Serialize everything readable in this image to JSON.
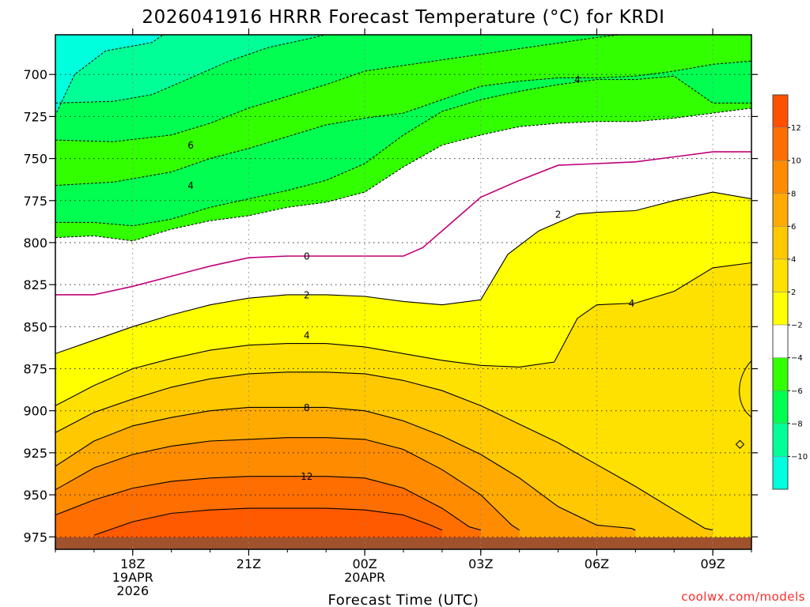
{
  "chart_data": {
    "type": "heatmap",
    "title": "2026041916 HRRR Forecast Temperature (°C) for KRDI",
    "xlabel": "Forecast Time (UTC)",
    "ylabel": "",
    "credit": "coolwx.com/models",
    "x_ticks": [
      {
        "hour": 2,
        "lines": [
          "18Z",
          "19APR",
          "2026"
        ]
      },
      {
        "hour": 5,
        "lines": [
          "21Z"
        ]
      },
      {
        "hour": 8,
        "lines": [
          "00Z",
          "20APR"
        ]
      },
      {
        "hour": 11,
        "lines": [
          "03Z"
        ]
      },
      {
        "hour": 14,
        "lines": [
          "06Z"
        ]
      },
      {
        "hour": 17,
        "lines": [
          "09Z"
        ]
      }
    ],
    "xlim_hours": [
      0,
      18
    ],
    "y_ticks": [
      700,
      725,
      750,
      775,
      800,
      825,
      850,
      875,
      900,
      925,
      950,
      975
    ],
    "ylim": [
      676,
      982
    ],
    "colorbar": {
      "levels": [
        -10,
        -8,
        -6,
        -4,
        -2,
        2,
        4,
        6,
        8,
        10,
        12,
        14
      ],
      "colors": [
        "#00ffdc",
        "#00ff96",
        "#00ff50",
        "#32ff00",
        "#ffffff",
        "#ffff00",
        "#ffe100",
        "#ffc800",
        "#ffaa00",
        "#ff8c00",
        "#ff6e00",
        "#ff5000"
      ]
    },
    "fill_colors": {
      "cold_6": "#00ff96",
      "cold_4": "#00ff50",
      "cold_2": "#32ff00",
      "neutral": "#ffffff",
      "warm_2": "#ffff00",
      "warm_4": "#ffe100",
      "warm_6": "#ffc800",
      "warm_8": "#ffaa00",
      "warm_10": "#ff8c00",
      "warm_12": "#ff6e00",
      "warm_14": "#ff5a00",
      "ground": "#a0522d",
      "zero_line": "#c0007a"
    },
    "contours": [
      {
        "value": -8,
        "style": "dashed",
        "points": [
          [
            -0.1,
            729
          ],
          [
            0.5,
            700
          ],
          [
            1.3,
            686
          ],
          [
            2.5,
            681
          ],
          [
            3.5,
            665
          ]
        ]
      },
      {
        "value": -6,
        "style": "dashed",
        "points": [
          [
            0,
            717
          ],
          [
            1.5,
            716
          ],
          [
            2.5,
            712
          ],
          [
            3.5,
            702
          ],
          [
            4.5,
            692
          ],
          [
            5.5,
            684
          ],
          [
            6.5,
            679
          ],
          [
            8,
            671
          ]
        ]
      },
      {
        "value": -4,
        "style": "dashed",
        "points": [
          [
            0,
            739
          ],
          [
            1.5,
            740
          ],
          [
            3,
            736
          ],
          [
            4,
            729
          ],
          [
            5,
            720
          ],
          [
            6,
            713
          ],
          [
            7,
            706
          ],
          [
            8,
            698
          ],
          [
            9.5,
            693
          ],
          [
            11,
            688
          ],
          [
            12.5,
            683
          ],
          [
            14,
            678
          ],
          [
            15.5,
            674
          ],
          [
            16.5,
            670
          ]
        ]
      },
      {
        "value": -2,
        "style": "dashed",
        "points": [
          [
            0,
            766
          ],
          [
            1.5,
            764
          ],
          [
            3,
            758
          ],
          [
            4,
            750
          ],
          [
            5,
            744
          ],
          [
            6,
            737
          ],
          [
            7,
            730
          ],
          [
            8,
            726
          ],
          [
            9,
            723
          ],
          [
            10,
            715
          ],
          [
            11,
            707
          ],
          [
            12,
            704
          ],
          [
            13,
            702
          ],
          [
            14,
            702
          ],
          [
            15,
            701
          ],
          [
            16,
            698
          ],
          [
            17,
            694
          ],
          [
            18,
            692
          ]
        ]
      },
      {
        "value": -2,
        "style": "dashed",
        "points": [
          [
            0,
            788
          ],
          [
            1,
            788
          ],
          [
            2,
            790
          ],
          [
            3,
            786
          ],
          [
            4,
            779
          ],
          [
            5,
            774
          ],
          [
            6,
            769
          ],
          [
            7,
            763
          ],
          [
            8,
            753
          ],
          [
            9,
            736
          ],
          [
            10,
            722
          ],
          [
            11,
            715
          ],
          [
            12,
            710
          ],
          [
            13,
            706
          ],
          [
            14,
            703
          ],
          [
            15,
            703
          ],
          [
            16,
            701
          ],
          [
            17,
            717
          ],
          [
            18,
            717
          ]
        ]
      },
      {
        "value": -4,
        "style": "dashed",
        "points": [
          [
            0,
            797
          ],
          [
            1,
            796
          ],
          [
            2,
            799
          ],
          [
            3,
            792
          ],
          [
            4,
            787
          ],
          [
            5,
            784
          ],
          [
            6,
            779
          ],
          [
            7,
            776
          ],
          [
            8,
            770
          ],
          [
            9,
            755
          ],
          [
            10,
            742
          ],
          [
            11,
            736
          ],
          [
            12,
            731
          ],
          [
            13,
            729
          ],
          [
            14,
            728
          ],
          [
            15,
            728
          ],
          [
            16,
            726
          ],
          [
            17,
            723
          ],
          [
            18,
            720
          ]
        ]
      },
      {
        "value": 0,
        "style": "zero",
        "points": [
          [
            0,
            831
          ],
          [
            1,
            831
          ],
          [
            2,
            826
          ],
          [
            3,
            820
          ],
          [
            4,
            814
          ],
          [
            5,
            809
          ],
          [
            6,
            808
          ],
          [
            7,
            808
          ],
          [
            8,
            808
          ],
          [
            9,
            808
          ],
          [
            9.5,
            803
          ],
          [
            10,
            793
          ],
          [
            11,
            773
          ],
          [
            12,
            763
          ],
          [
            13,
            754
          ],
          [
            14,
            753
          ],
          [
            15,
            752
          ],
          [
            16,
            749
          ],
          [
            17,
            746
          ],
          [
            18,
            746
          ]
        ]
      },
      {
        "value": 2,
        "style": "solid",
        "points": [
          [
            0,
            866
          ],
          [
            1,
            858
          ],
          [
            2,
            850
          ],
          [
            3,
            843
          ],
          [
            4,
            837
          ],
          [
            5,
            833
          ],
          [
            6,
            831
          ],
          [
            7,
            831
          ],
          [
            8,
            832
          ],
          [
            9,
            835
          ],
          [
            10,
            837
          ],
          [
            11,
            834
          ],
          [
            11.7,
            807
          ],
          [
            12.5,
            793
          ],
          [
            13.5,
            783
          ],
          [
            14,
            782
          ],
          [
            15,
            781
          ],
          [
            16,
            775
          ],
          [
            17,
            770
          ],
          [
            18,
            774
          ]
        ]
      },
      {
        "value": 4,
        "style": "solid",
        "points": [
          [
            0,
            897
          ],
          [
            1,
            885
          ],
          [
            2,
            875
          ],
          [
            3,
            869
          ],
          [
            4,
            864
          ],
          [
            5,
            861
          ],
          [
            6,
            860
          ],
          [
            7,
            860
          ],
          [
            8,
            862
          ],
          [
            9,
            866
          ],
          [
            10,
            870
          ],
          [
            11,
            873
          ],
          [
            12,
            874
          ],
          [
            12.9,
            871
          ],
          [
            13.5,
            845
          ],
          [
            14,
            837
          ],
          [
            15,
            836
          ],
          [
            16,
            829
          ],
          [
            17,
            815
          ],
          [
            18,
            812
          ]
        ]
      },
      {
        "value": 6,
        "style": "solid",
        "points": [
          [
            0,
            913
          ],
          [
            1,
            901
          ],
          [
            2,
            893
          ],
          [
            3,
            886
          ],
          [
            4,
            881
          ],
          [
            5,
            878
          ],
          [
            6,
            877
          ],
          [
            7,
            877
          ],
          [
            8,
            878
          ],
          [
            9,
            882
          ],
          [
            10,
            888
          ],
          [
            11,
            897
          ],
          [
            12,
            908
          ],
          [
            13,
            919
          ],
          [
            14,
            932
          ],
          [
            15,
            945
          ],
          [
            16,
            959
          ],
          [
            16.8,
            970
          ],
          [
            17,
            971
          ]
        ]
      },
      {
        "value": 8,
        "style": "solid",
        "points": [
          [
            0,
            933
          ],
          [
            1,
            918
          ],
          [
            2,
            909
          ],
          [
            3,
            904
          ],
          [
            4,
            900
          ],
          [
            5,
            898
          ],
          [
            6,
            898
          ],
          [
            7,
            898
          ],
          [
            8,
            900
          ],
          [
            9,
            906
          ],
          [
            10,
            915
          ],
          [
            11,
            926
          ],
          [
            12,
            940
          ],
          [
            13,
            957
          ],
          [
            14,
            968
          ],
          [
            14.9,
            970
          ],
          [
            15,
            971
          ]
        ]
      },
      {
        "value": 10,
        "style": "solid",
        "points": [
          [
            0,
            947
          ],
          [
            1,
            934
          ],
          [
            2,
            926
          ],
          [
            3,
            921
          ],
          [
            4,
            918
          ],
          [
            5,
            917
          ],
          [
            6,
            916
          ],
          [
            7,
            916
          ],
          [
            8,
            917
          ],
          [
            9,
            923
          ],
          [
            10,
            935
          ],
          [
            11,
            950
          ],
          [
            11.8,
            968
          ],
          [
            12,
            971
          ]
        ]
      },
      {
        "value": 12,
        "style": "solid",
        "points": [
          [
            0,
            962
          ],
          [
            1,
            953
          ],
          [
            2,
            946
          ],
          [
            3,
            942
          ],
          [
            4,
            940
          ],
          [
            5,
            939
          ],
          [
            6,
            939
          ],
          [
            7,
            939
          ],
          [
            8,
            940
          ],
          [
            9,
            946
          ],
          [
            10,
            958
          ],
          [
            10.7,
            969
          ],
          [
            11,
            971
          ]
        ]
      },
      {
        "value": 14,
        "style": "solid",
        "points": [
          [
            1,
            974
          ],
          [
            2,
            966
          ],
          [
            3,
            961
          ],
          [
            4,
            959
          ],
          [
            5,
            958
          ],
          [
            6,
            958
          ],
          [
            7,
            958
          ],
          [
            8,
            959
          ],
          [
            9,
            962
          ],
          [
            9.7,
            968
          ],
          [
            10,
            971
          ]
        ]
      }
    ],
    "contour_labels": [
      {
        "text": "6",
        "x": 3.5,
        "y": 742
      },
      {
        "text": "4",
        "x": 3.5,
        "y": 766
      },
      {
        "text": "4",
        "x": 13.5,
        "y": 703
      },
      {
        "text": "0",
        "x": 6.5,
        "y": 808
      },
      {
        "text": "2",
        "x": 6.5,
        "y": 831
      },
      {
        "text": "2",
        "x": 13,
        "y": 783
      },
      {
        "text": "4",
        "x": 6.5,
        "y": 855
      },
      {
        "text": "4",
        "x": 14.9,
        "y": 836
      },
      {
        "text": "8",
        "x": 6.5,
        "y": 898
      },
      {
        "text": "12",
        "x": 6.5,
        "y": 939
      }
    ],
    "ground_level_hpa": 975.3
  }
}
